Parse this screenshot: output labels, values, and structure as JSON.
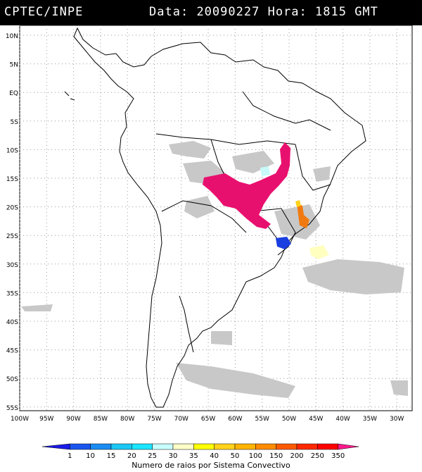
{
  "header": {
    "source": "CPTEC/INPE",
    "date_label": "Data:",
    "date_value": "20090227",
    "time_label": "Hora:",
    "time_value": "1815 GMT"
  },
  "map": {
    "lat_labels": [
      "10N",
      "5N",
      "EQ",
      "5S",
      "10S",
      "15S",
      "20S",
      "25S",
      "30S",
      "35S",
      "40S",
      "45S",
      "50S",
      "55S"
    ],
    "lon_labels": [
      "100W",
      "95W",
      "90W",
      "85W",
      "80W",
      "75W",
      "70W",
      "65W",
      "60W",
      "55W",
      "50W",
      "45W",
      "40W",
      "35W",
      "30W"
    ],
    "colors": {
      "land_border": "#000000",
      "cloud_gray": "#c8c8c8",
      "lightning_magenta": "#e8106e",
      "lightning_blue": "#1a3fe0",
      "lightning_orange": "#f07a10",
      "lightning_yellow": "#ffffc0",
      "lightning_cyan": "#c8fafa"
    }
  },
  "colorbar": {
    "labels": [
      "1",
      "10",
      "15",
      "20",
      "25",
      "30",
      "35",
      "40",
      "50",
      "100",
      "150",
      "200",
      "250",
      "350"
    ],
    "colors": [
      "#1a1ae6",
      "#1a55ee",
      "#1a8cf2",
      "#1ac8f5",
      "#1ae6ff",
      "#c8ffff",
      "#ffffc8",
      "#ffff00",
      "#ffd21a",
      "#ffb400",
      "#ff8c00",
      "#ff5a00",
      "#ff2800",
      "#ff0000",
      "#ff1a8c"
    ],
    "caption": "Numero de raios por Sistema Convectivo"
  }
}
